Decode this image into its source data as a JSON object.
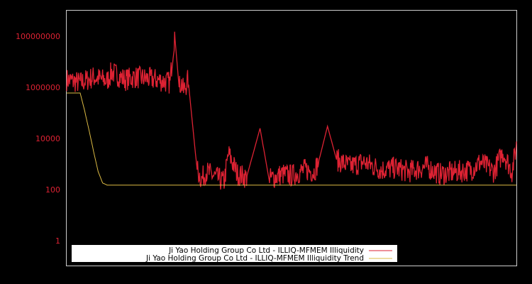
{
  "chart_data": {
    "type": "line",
    "title": "",
    "xlabel": "",
    "ylabel": "",
    "yscale": "log",
    "ylim": [
      0.1,
      1000000000
    ],
    "y_ticks": [
      {
        "label": "100000000",
        "value": 100000000
      },
      {
        "label": "1000000",
        "value": 1000000
      },
      {
        "label": "10000",
        "value": 10000
      },
      {
        "label": "100",
        "value": 100
      },
      {
        "label": "1",
        "value": 1
      }
    ],
    "grid": false,
    "legend_position": "bottom-left inside",
    "colors": {
      "background": "#000000",
      "frame": "#cccccc",
      "tick_label": "#dd2233",
      "series_main": "#dd2233",
      "series_trend": "#ddbb44"
    },
    "series": [
      {
        "name": "Ji Yao Holding Group Co Ltd - ILLIQ-MFMEM Illiquidity",
        "color": "#dd2233",
        "x_frac": [
          0.0,
          0.03,
          0.06,
          0.09,
          0.1,
          0.13,
          0.15,
          0.2,
          0.23,
          0.235,
          0.24,
          0.25,
          0.255,
          0.26,
          0.27,
          0.29,
          0.3,
          0.31,
          0.35,
          0.36,
          0.38,
          0.4,
          0.43,
          0.45,
          0.48,
          0.5,
          0.53,
          0.55,
          0.56,
          0.58,
          0.6,
          0.63,
          0.66,
          0.7,
          0.73,
          0.76,
          0.8,
          0.83,
          0.87,
          0.9,
          0.92,
          0.95,
          0.97,
          0.99,
          1.0
        ],
        "values": [
          2000000,
          1500000,
          2500000,
          1800000,
          4000000,
          2000000,
          2500000,
          2000000,
          1500000,
          15000000,
          120000000,
          1000000,
          1600000,
          700000,
          2000000,
          600,
          250,
          500,
          200,
          2500,
          400,
          300,
          25000,
          250,
          400,
          350,
          600,
          500,
          1200,
          30000,
          1500,
          800,
          1200,
          600,
          700,
          500,
          800,
          400,
          500,
          600,
          1200,
          500,
          3000,
          500,
          5000
        ]
      },
      {
        "name": "Ji Yao Holding Group Co Ltd - ILLIQ-MFMEM Illiquidity Trend",
        "color": "#ddbb44",
        "x_frac": [
          0.0,
          0.03,
          0.04,
          0.05,
          0.06,
          0.07,
          0.08,
          0.09,
          1.0
        ],
        "values": [
          600000,
          600000,
          120000,
          20000,
          3000,
          500,
          180,
          150,
          150
        ]
      }
    ]
  },
  "legend": {
    "items": [
      {
        "label": "Ji Yao Holding Group Co Ltd - ILLIQ-MFMEM Illiquidity",
        "color": "#dd2233"
      },
      {
        "label": "Ji Yao Holding Group Co Ltd - ILLIQ-MFMEM Illiquidity Trend",
        "color": "#ddbb44"
      }
    ]
  }
}
